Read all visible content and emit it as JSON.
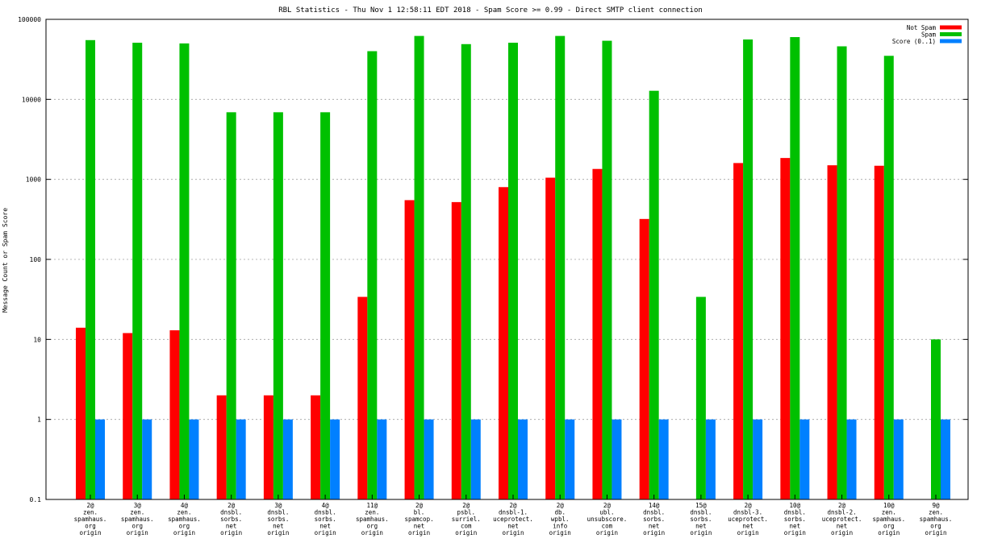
{
  "chart_data": {
    "type": "bar",
    "title": "RBL Statistics - Thu Nov  1 12:58:11 EDT 2018 - Spam Score >= 0.99 - Direct SMTP client connection",
    "xlabel": "",
    "ylabel": "Message Count or Spam Score",
    "yscale": "log",
    "ylim": [
      0.1,
      100000
    ],
    "yticks": [
      "0.1",
      "1",
      "10",
      "100",
      "1000",
      "10000",
      "100000"
    ],
    "grid": true,
    "legend_position": "top-right",
    "categories": [
      [
        "2@",
        "zen.",
        "spamhaus.",
        "org",
        "origin"
      ],
      [
        "3@",
        "zen.",
        "spamhaus.",
        "org",
        "origin"
      ],
      [
        "4@",
        "zen.",
        "spamhaus.",
        "org",
        "origin"
      ],
      [
        "2@",
        "dnsbl.",
        "sorbs.",
        "net",
        "origin"
      ],
      [
        "3@",
        "dnsbl.",
        "sorbs.",
        "net",
        "origin"
      ],
      [
        "4@",
        "dnsbl.",
        "sorbs.",
        "net",
        "origin"
      ],
      [
        "11@",
        "zen.",
        "spamhaus.",
        "org",
        "origin"
      ],
      [
        "2@",
        "bl.",
        "spamcop.",
        "net",
        "origin"
      ],
      [
        "2@",
        "psbl.",
        "surriel.",
        "com",
        "origin"
      ],
      [
        "2@",
        "dnsbl-1.",
        "uceprotect.",
        "net",
        "origin"
      ],
      [
        "2@",
        "db.",
        "wpbl.",
        "info",
        "origin"
      ],
      [
        "2@",
        "ubl.",
        "unsubscore.",
        "com",
        "origin"
      ],
      [
        "14@",
        "dnsbl.",
        "sorbs.",
        "net",
        "origin"
      ],
      [
        "15@",
        "dnsbl.",
        "sorbs.",
        "net",
        "origin"
      ],
      [
        "2@",
        "dnsbl-3.",
        "uceprotect.",
        "net",
        "origin"
      ],
      [
        "10@",
        "dnsbl.",
        "sorbs.",
        "net",
        "origin"
      ],
      [
        "2@",
        "dnsbl-2.",
        "uceprotect.",
        "net",
        "origin"
      ],
      [
        "10@",
        "zen.",
        "spamhaus.",
        "org",
        "origin"
      ],
      [
        "9@",
        "zen.",
        "spamhaus.",
        "org",
        "origin"
      ]
    ],
    "series": [
      {
        "name": "Not Spam",
        "color": "#ff0000",
        "values": [
          14,
          12,
          13,
          2,
          2,
          2,
          34,
          550,
          520,
          800,
          1050,
          1350,
          320,
          null,
          1600,
          1850,
          1500,
          1480,
          null
        ]
      },
      {
        "name": "Spam",
        "color": "#00c000",
        "values": [
          55000,
          51000,
          50000,
          6900,
          6900,
          6900,
          40000,
          62000,
          49000,
          51000,
          62000,
          54000,
          12800,
          34,
          56000,
          60000,
          46000,
          35000,
          10
        ]
      },
      {
        "name": "Score (0..1)",
        "color": "#0080ff",
        "values": [
          1,
          1,
          1,
          1,
          1,
          1,
          1,
          1,
          1,
          1,
          1,
          1,
          1,
          1,
          1,
          1,
          1,
          1,
          1
        ]
      }
    ]
  }
}
